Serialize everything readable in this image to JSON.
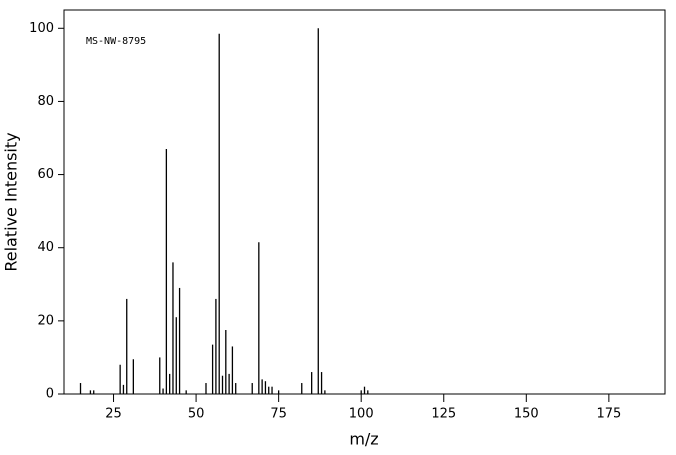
{
  "chart_data": {
    "type": "stick",
    "annotation": "MS-NW-8795",
    "xlabel": "m/z",
    "ylabel": "Relative Intensity",
    "x": [
      15,
      18,
      19,
      27,
      28,
      29,
      31,
      39,
      40,
      41,
      42,
      43,
      44,
      45,
      47,
      53,
      55,
      56,
      57,
      58,
      59,
      60,
      61,
      62,
      67,
      69,
      70,
      71,
      72,
      73,
      75,
      82,
      85,
      87,
      88,
      89,
      100,
      101,
      102
    ],
    "values": [
      3,
      1,
      1,
      8,
      2.5,
      26,
      9.5,
      10,
      1.5,
      67,
      5.5,
      36,
      21,
      29,
      1,
      3,
      13.5,
      26,
      98.5,
      5,
      17.5,
      5.5,
      13,
      3,
      3,
      41.5,
      4,
      3.5,
      2,
      2,
      1,
      3,
      6,
      100,
      6,
      1,
      1,
      2,
      1
    ],
    "color": "#000000",
    "xlim": [
      10,
      192
    ],
    "ylim": [
      0,
      105
    ],
    "xticks": [
      25,
      50,
      75,
      100,
      125,
      150,
      175
    ],
    "yticks": [
      0,
      20,
      40,
      60,
      80,
      100
    ]
  }
}
